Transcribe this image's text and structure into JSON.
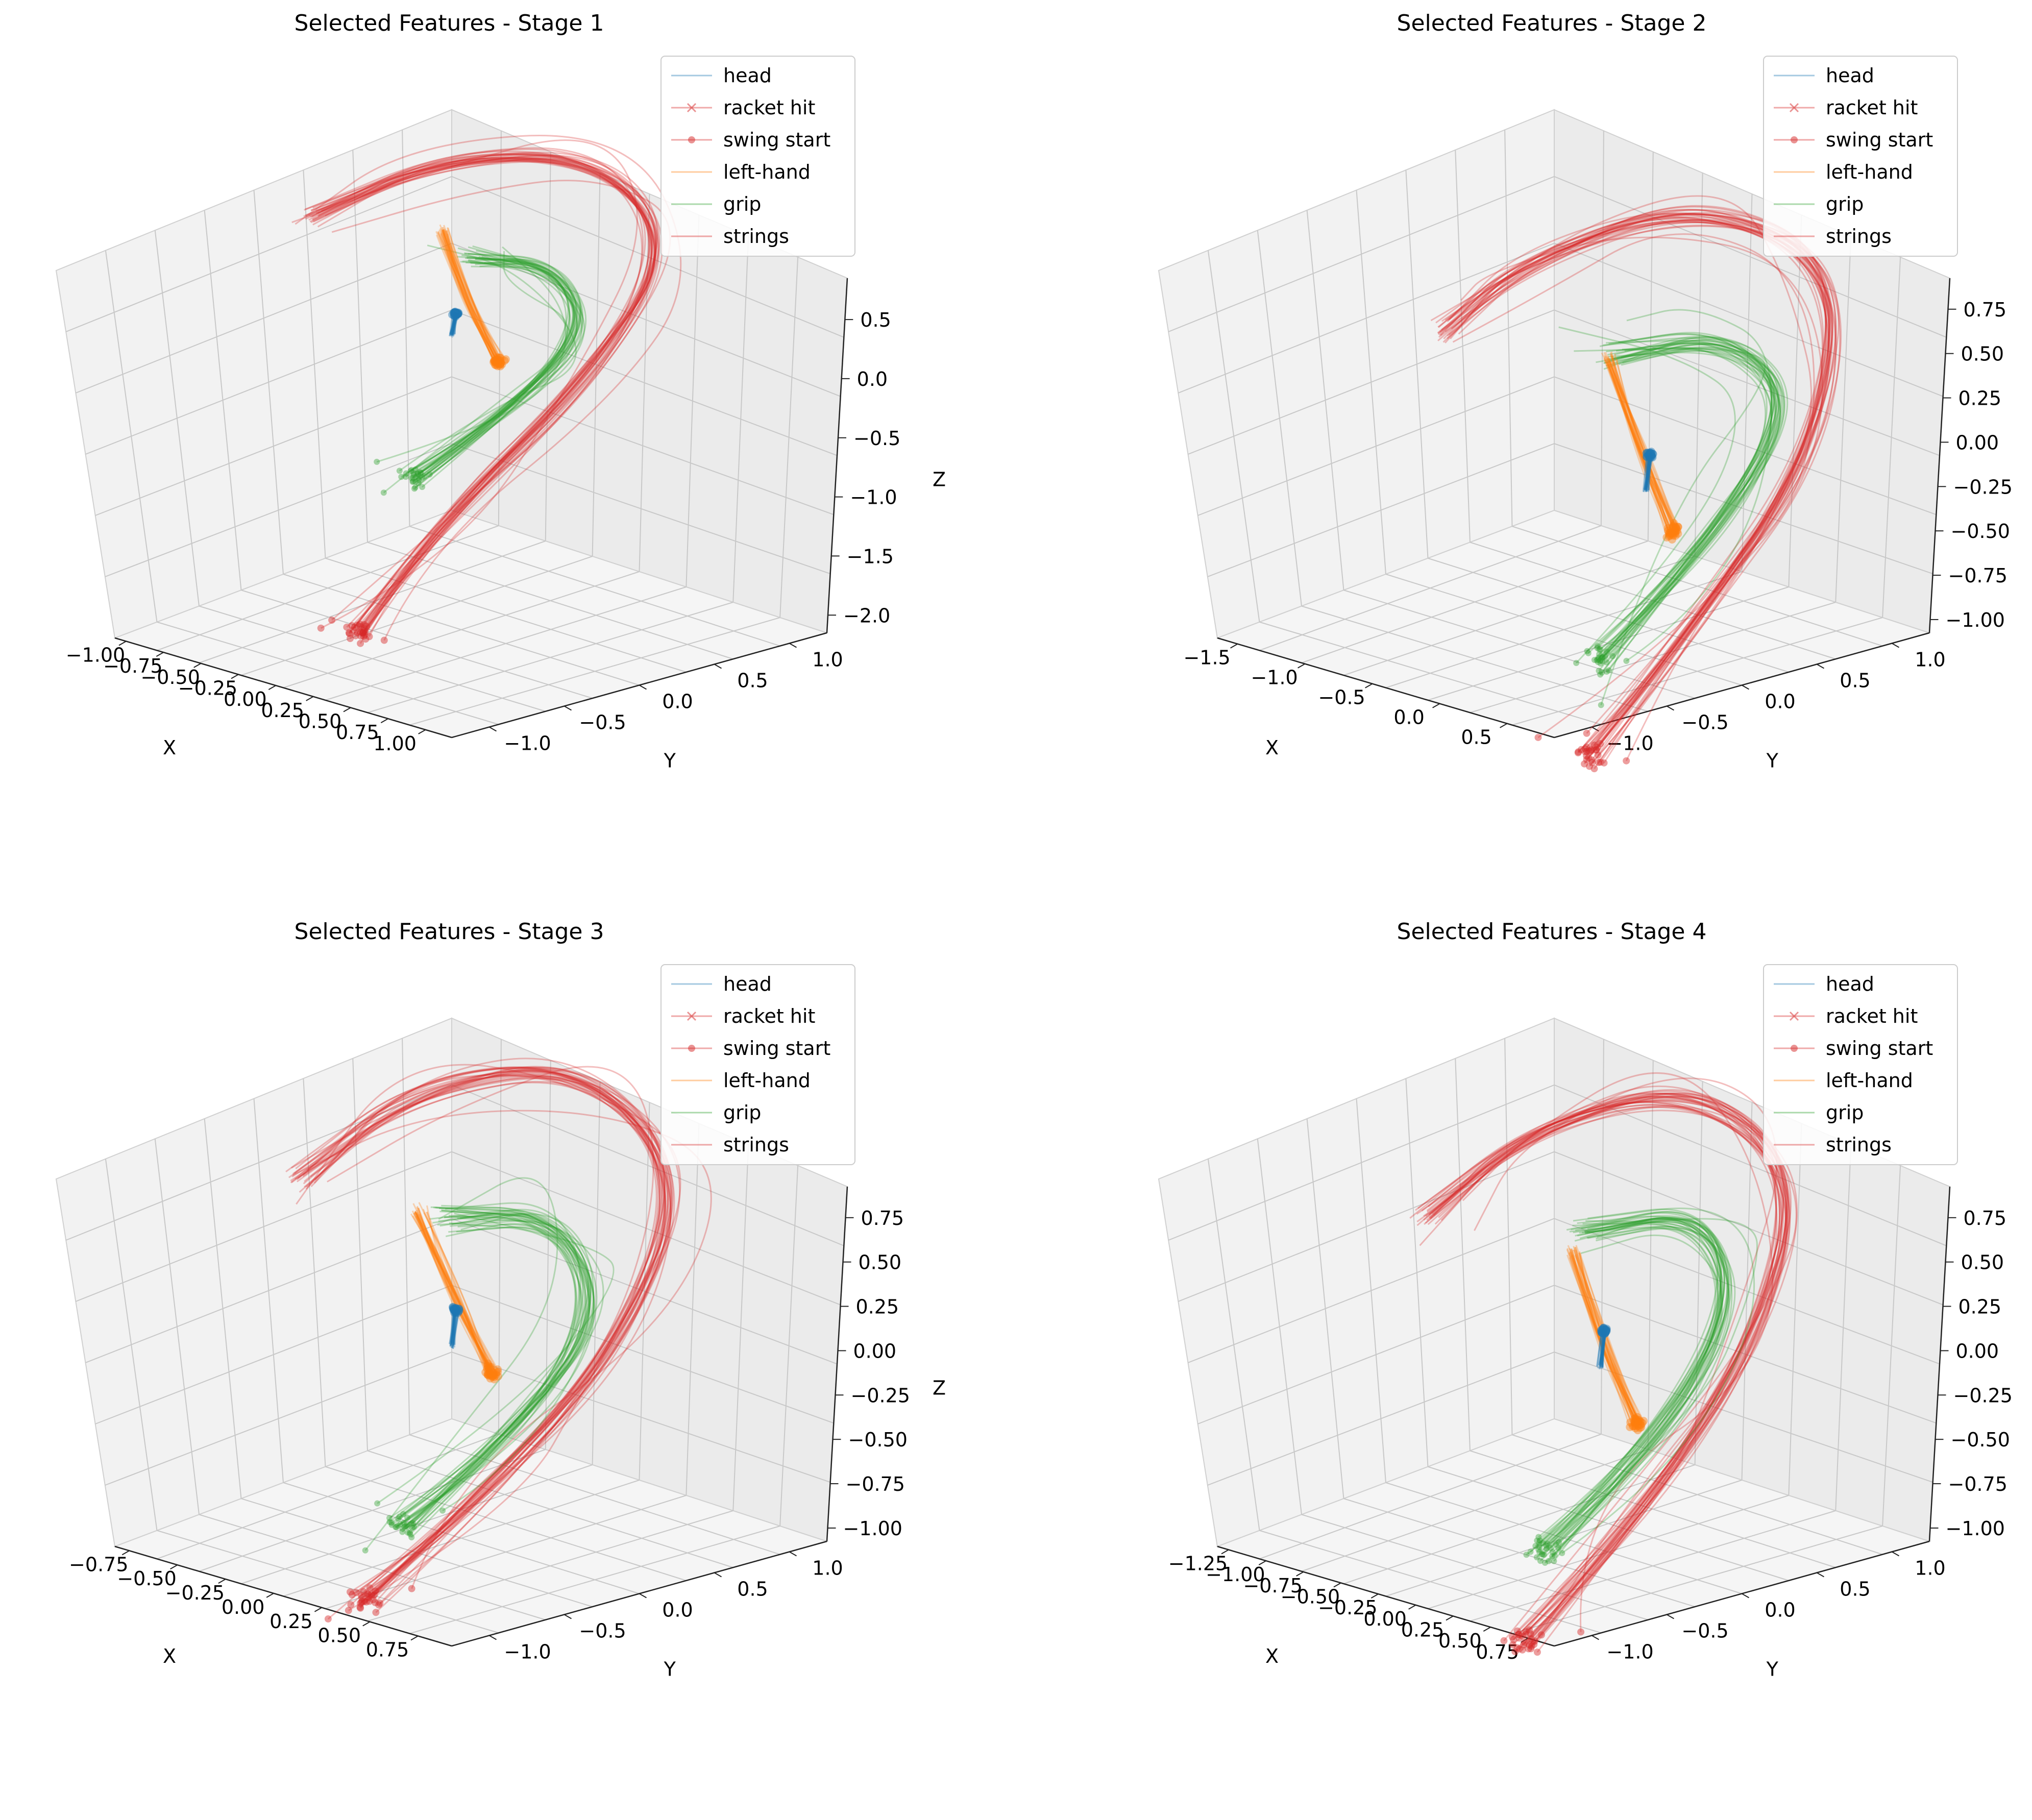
{
  "figure": {
    "background": "#ffffff"
  },
  "colors": {
    "head": "#1f77b4",
    "racket_hit": "#d62728",
    "swing_start": "#d62728",
    "left_hand": "#ff7f0e",
    "grip": "#2ca02c",
    "strings": "#d62728",
    "pane_left": "#f2f2f2",
    "pane_right": "#ebebeb",
    "pane_floor": "#f5f5f5",
    "grid": "#c8c8c8"
  },
  "legend_entries": [
    {
      "key": "head",
      "label": "head",
      "marker": "none",
      "color": "#1f77b4"
    },
    {
      "key": "racket_hit",
      "label": "racket hit",
      "marker": "x",
      "color": "#d62728"
    },
    {
      "key": "swing_start",
      "label": "swing start",
      "marker": "dot",
      "color": "#d62728"
    },
    {
      "key": "left_hand",
      "label": "left-hand",
      "marker": "none",
      "color": "#ff7f0e"
    },
    {
      "key": "grip",
      "label": "grip",
      "marker": "none",
      "color": "#2ca02c"
    },
    {
      "key": "strings",
      "label": "strings",
      "marker": "none",
      "color": "#d62728"
    }
  ],
  "chart_data": [
    {
      "type": "line",
      "projection": "3d",
      "title": "Selected Features - Stage 1",
      "xlabel": "X",
      "ylabel": "Y",
      "zlabel": "Z",
      "xticks": [
        "−1.00",
        "−0.75",
        "−0.50",
        "−0.25",
        "0.00",
        "0.25",
        "0.50",
        "0.75",
        "1.00"
      ],
      "yticks": [
        "−1.0",
        "−0.5",
        "0.0",
        "0.5",
        "1.0"
      ],
      "zticks": [
        "−2.0",
        "−1.5",
        "−1.0",
        "−0.5",
        "0.0",
        "0.5"
      ],
      "xlim": [
        -1.0,
        1.0
      ],
      "ylim": [
        -1.0,
        1.0
      ],
      "zlim": [
        -2.0,
        0.5
      ],
      "legend": "top-right",
      "grid": true,
      "series": [
        {
          "name": "strings",
          "trajectories": 30,
          "path": [
            [
              0.05,
              -0.55,
              -1.55
            ],
            [
              0.25,
              -0.35,
              -0.9
            ],
            [
              0.45,
              0.3,
              -0.2
            ],
            [
              0.35,
              0.85,
              0.3
            ],
            [
              -0.15,
              0.95,
              0.55
            ],
            [
              -0.6,
              0.55,
              0.5
            ],
            [
              -0.8,
              0.05,
              0.3
            ]
          ]
        },
        {
          "name": "grip",
          "trajectories": 30,
          "path": [
            [
              -0.05,
              -0.15,
              -0.85
            ],
            [
              0.2,
              0.1,
              -0.45
            ],
            [
              0.3,
              0.45,
              -0.05
            ],
            [
              0.0,
              0.55,
              0.15
            ],
            [
              -0.3,
              0.4,
              0.12
            ]
          ]
        },
        {
          "name": "left-hand",
          "trajectories": 30,
          "path": [
            [
              -0.55,
              0.5,
              0.1
            ],
            [
              -0.3,
              0.35,
              -0.05
            ],
            [
              0.05,
              0.2,
              -0.25
            ]
          ]
        },
        {
          "name": "head",
          "trajectories": 30,
          "path": [
            [
              0.0,
              0.0,
              0.0
            ],
            [
              0.0,
              0.02,
              0.12
            ]
          ]
        }
      ]
    },
    {
      "type": "line",
      "projection": "3d",
      "title": "Selected Features - Stage 2",
      "xlabel": "X",
      "ylabel": "Y",
      "zlabel": "Z",
      "xticks": [
        "−1.5",
        "−1.0",
        "−0.5",
        "0.0",
        "0.5"
      ],
      "yticks": [
        "−1.0",
        "−0.5",
        "0.0",
        "0.5",
        "1.0"
      ],
      "zticks": [
        "−1.00",
        "−0.75",
        "−0.50",
        "−0.25",
        "0.00",
        "0.25",
        "0.50",
        "0.75"
      ],
      "xlim": [
        -1.5,
        0.5
      ],
      "ylim": [
        -1.0,
        1.0
      ],
      "zlim": [
        -1.0,
        0.75
      ],
      "legend": "top-right",
      "grid": true,
      "series": [
        {
          "name": "strings",
          "trajectories": 30,
          "path": [
            [
              0.2,
              -0.5,
              -1.0
            ],
            [
              0.35,
              -0.1,
              -0.55
            ],
            [
              0.45,
              0.5,
              0.1
            ],
            [
              0.1,
              0.95,
              0.6
            ],
            [
              -0.5,
              0.75,
              0.7
            ],
            [
              -0.95,
              0.3,
              0.45
            ],
            [
              -1.1,
              0.0,
              0.2
            ]
          ]
        },
        {
          "name": "grip",
          "trajectories": 30,
          "path": [
            [
              0.0,
              -0.25,
              -0.75
            ],
            [
              0.25,
              0.05,
              -0.3
            ],
            [
              0.3,
              0.5,
              0.2
            ],
            [
              -0.1,
              0.55,
              0.35
            ],
            [
              -0.5,
              0.3,
              0.2
            ]
          ]
        },
        {
          "name": "left-hand",
          "trajectories": 30,
          "path": [
            [
              -0.55,
              0.35,
              0.15
            ],
            [
              -0.25,
              0.2,
              -0.05
            ],
            [
              0.05,
              0.1,
              -0.3
            ]
          ]
        },
        {
          "name": "head",
          "trajectories": 30,
          "path": [
            [
              0.0,
              0.0,
              -0.1
            ],
            [
              0.0,
              0.02,
              0.05
            ]
          ]
        }
      ]
    },
    {
      "type": "line",
      "projection": "3d",
      "title": "Selected Features - Stage 3",
      "xlabel": "X",
      "ylabel": "Y",
      "zlabel": "Z",
      "xticks": [
        "−0.75",
        "−0.50",
        "−0.25",
        "0.00",
        "0.25",
        "0.50",
        "0.75"
      ],
      "yticks": [
        "−1.0",
        "−0.5",
        "0.0",
        "0.5",
        "1.0"
      ],
      "zticks": [
        "−1.00",
        "−0.75",
        "−0.50",
        "−0.25",
        "0.00",
        "0.25",
        "0.50",
        "0.75"
      ],
      "xlim": [
        -0.8,
        0.8
      ],
      "ylim": [
        -1.0,
        1.0
      ],
      "zlim": [
        -1.0,
        0.75
      ],
      "legend": "top-right",
      "grid": true,
      "series": [
        {
          "name": "strings",
          "trajectories": 30,
          "path": [
            [
              0.1,
              -0.6,
              -0.9
            ],
            [
              0.3,
              -0.3,
              -0.55
            ],
            [
              0.45,
              0.35,
              0.0
            ],
            [
              0.3,
              0.9,
              0.5
            ],
            [
              -0.2,
              0.95,
              0.75
            ],
            [
              -0.6,
              0.55,
              0.6
            ],
            [
              -0.75,
              0.1,
              0.3
            ]
          ]
        },
        {
          "name": "grip",
          "trajectories": 30,
          "path": [
            [
              -0.05,
              -0.2,
              -0.8
            ],
            [
              0.2,
              0.05,
              -0.4
            ],
            [
              0.3,
              0.45,
              0.05
            ],
            [
              0.0,
              0.6,
              0.3
            ],
            [
              -0.35,
              0.4,
              0.2
            ]
          ]
        },
        {
          "name": "left-hand",
          "trajectories": 30,
          "path": [
            [
              -0.5,
              0.45,
              0.15
            ],
            [
              -0.25,
              0.3,
              0.0
            ],
            [
              0.05,
              0.15,
              -0.2
            ]
          ]
        },
        {
          "name": "head",
          "trajectories": 30,
          "path": [
            [
              0.0,
              0.0,
              -0.05
            ],
            [
              0.0,
              0.02,
              0.1
            ]
          ]
        }
      ]
    },
    {
      "type": "line",
      "projection": "3d",
      "title": "Selected Features - Stage 4",
      "xlabel": "X",
      "ylabel": "Y",
      "zlabel": "Z",
      "xticks": [
        "−1.25",
        "−1.00",
        "−0.75",
        "−0.50",
        "−0.25",
        "0.00",
        "0.25",
        "0.50",
        "0.75"
      ],
      "yticks": [
        "−1.0",
        "−0.5",
        "0.0",
        "0.5",
        "1.0"
      ],
      "zticks": [
        "−1.00",
        "−0.75",
        "−0.50",
        "−0.25",
        "0.00",
        "0.25",
        "0.50",
        "0.75"
      ],
      "xlim": [
        -1.25,
        0.75
      ],
      "ylim": [
        -1.0,
        1.0
      ],
      "zlim": [
        -1.0,
        0.75
      ],
      "legend": "top-right",
      "grid": true,
      "series": [
        {
          "name": "strings",
          "trajectories": 30,
          "path": [
            [
              0.15,
              -0.55,
              -1.0
            ],
            [
              0.35,
              -0.2,
              -0.55
            ],
            [
              0.45,
              0.4,
              0.05
            ],
            [
              0.2,
              0.9,
              0.55
            ],
            [
              -0.35,
              0.85,
              0.75
            ],
            [
              -0.8,
              0.4,
              0.55
            ],
            [
              -0.95,
              0.0,
              0.25
            ]
          ]
        },
        {
          "name": "grip",
          "trajectories": 30,
          "path": [
            [
              0.0,
              -0.3,
              -0.75
            ],
            [
              0.25,
              0.0,
              -0.35
            ],
            [
              0.3,
              0.45,
              0.15
            ],
            [
              -0.05,
              0.6,
              0.4
            ],
            [
              -0.45,
              0.35,
              0.25
            ]
          ]
        },
        {
          "name": "left-hand",
          "trajectories": 30,
          "path": [
            [
              -0.5,
              0.35,
              0.15
            ],
            [
              -0.2,
              0.2,
              -0.05
            ],
            [
              0.1,
              0.1,
              -0.3
            ]
          ]
        },
        {
          "name": "head",
          "trajectories": 30,
          "path": [
            [
              0.0,
              0.0,
              -0.05
            ],
            [
              0.0,
              0.02,
              0.1
            ]
          ]
        }
      ]
    }
  ]
}
